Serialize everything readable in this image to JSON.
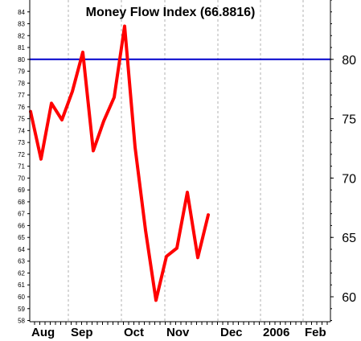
{
  "chart_data": {
    "type": "line",
    "title": "Money Flow Index (66.8816)",
    "x_labels": [
      "Aug",
      "Sep",
      "Oct",
      "Nov",
      "Dec",
      "2006",
      "Feb"
    ],
    "series": [
      {
        "color": "#ff0000",
        "values": [
          75.6,
          71.6,
          76.3,
          74.9,
          77.3,
          80.6,
          72.3,
          74.8,
          76.8,
          82.8,
          72.6,
          65.6,
          59.7,
          63.4,
          64.1,
          68.8,
          63.3,
          66.9
        ]
      }
    ],
    "reference_line": {
      "value": 80,
      "label": "80",
      "color": "#0000cc"
    },
    "y_left_ticks": [
      58,
      59,
      60,
      61,
      62,
      63,
      64,
      65,
      66,
      67,
      68,
      69,
      70,
      71,
      72,
      73,
      74,
      75,
      76,
      77,
      78,
      79,
      80,
      81,
      82,
      83,
      84
    ],
    "y_right_ticks": [
      60,
      65,
      70,
      75,
      80
    ],
    "ylim": [
      57.9,
      85
    ],
    "grid": "vertical-dashed"
  }
}
